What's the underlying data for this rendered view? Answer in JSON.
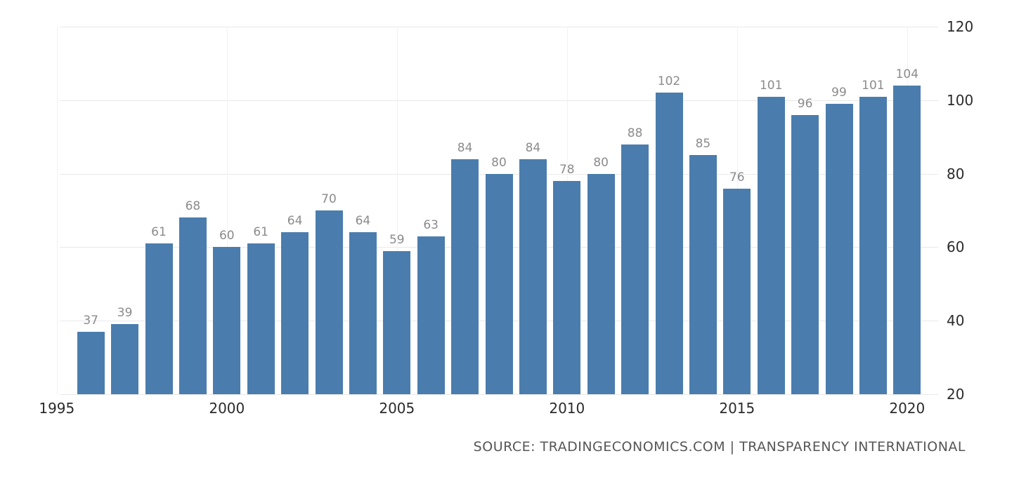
{
  "chart_data": {
    "type": "bar",
    "x": [
      1996,
      1997,
      1998,
      1999,
      2000,
      2001,
      2002,
      2003,
      2004,
      2005,
      2006,
      2007,
      2008,
      2009,
      2010,
      2011,
      2012,
      2013,
      2014,
      2015,
      2016,
      2017,
      2018,
      2019,
      2020
    ],
    "values": [
      37,
      39,
      61,
      68,
      60,
      61,
      64,
      70,
      64,
      59,
      63,
      84,
      80,
      84,
      78,
      80,
      88,
      102,
      85,
      76,
      101,
      96,
      99,
      101,
      104
    ],
    "title": "",
    "xlabel": "",
    "ylabel": "",
    "ylim": [
      20,
      120
    ],
    "y_ticks": [
      120,
      100,
      80,
      60,
      40,
      20
    ],
    "x_ticks": [
      1995,
      2000,
      2005,
      2010,
      2015,
      2020
    ],
    "bar_color": "#4a7dad",
    "value_label_color": "#8b8b8b",
    "axis_label_color": "#2b2b2b",
    "grid": true,
    "grid_color": "#e9e9e9",
    "legend": "none"
  },
  "source": {
    "text": "SOURCE: TRADINGECONOMICS.COM | TRANSPARENCY INTERNATIONAL"
  }
}
